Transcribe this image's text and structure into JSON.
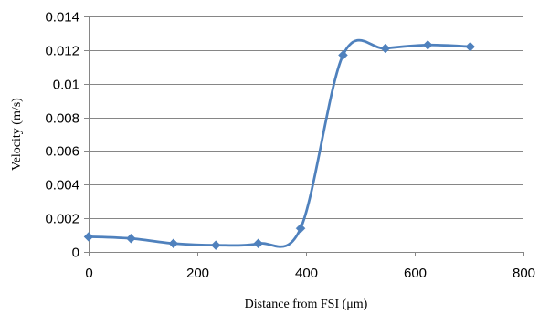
{
  "chart_data": {
    "type": "line",
    "title": "",
    "xlabel": "Distance from FSI (μm)",
    "ylabel": "Velocity (m/s)",
    "xlim": [
      0,
      800
    ],
    "ylim": [
      0,
      0.014
    ],
    "x_ticks": [
      0,
      200,
      400,
      600,
      800
    ],
    "x_tick_labels": [
      "0",
      "200",
      "400",
      "600",
      "800"
    ],
    "y_ticks": [
      0,
      0.002,
      0.004,
      0.006,
      0.008,
      0.01,
      0.012,
      0.014
    ],
    "y_tick_labels": [
      "0",
      "0.002",
      "0.004",
      "0.006",
      "0.008",
      "0.01",
      "0.012",
      "0.014"
    ],
    "grid": "horizontal",
    "legend": "none",
    "smoothed": true,
    "marker": "diamond",
    "series_color": "#4F81BD",
    "grid_color": "#868686",
    "series": [
      {
        "x": [
          0,
          78,
          156,
          234,
          312,
          390,
          468,
          546,
          624,
          702
        ],
        "y": [
          0.0009,
          0.0008,
          0.0005,
          0.0004,
          0.0005,
          0.0014,
          0.0117,
          0.0121,
          0.0123,
          0.0122
        ]
      }
    ]
  }
}
